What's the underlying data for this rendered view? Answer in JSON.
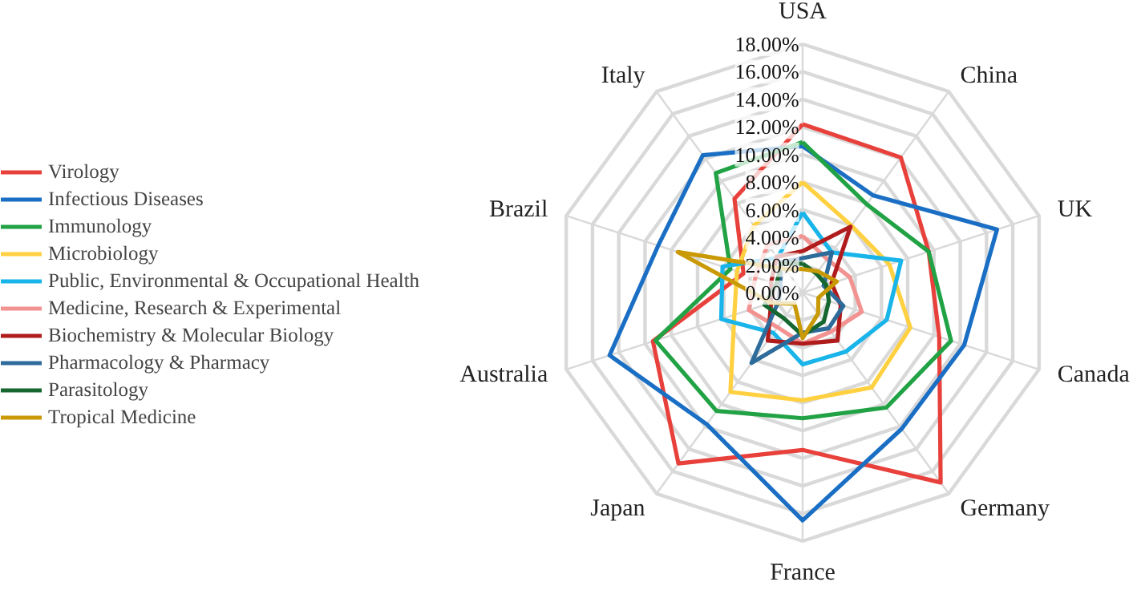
{
  "chart_data": {
    "type": "radar",
    "categories": [
      "USA",
      "China",
      "UK",
      "Canada",
      "Germany",
      "France",
      "Japan",
      "Australia",
      "Brazil",
      "Italy"
    ],
    "ylim": [
      0,
      18
    ],
    "yticks": [
      {
        "value": 0,
        "label": "0.00%"
      },
      {
        "value": 2,
        "label": "2.00%"
      },
      {
        "value": 4,
        "label": "4.00%"
      },
      {
        "value": 6,
        "label": "6.00%"
      },
      {
        "value": 8,
        "label": "8.00%"
      },
      {
        "value": 10,
        "label": "10.00%"
      },
      {
        "value": 12,
        "label": "12.00%"
      },
      {
        "value": 14,
        "label": "14.00%"
      },
      {
        "value": 16,
        "label": "16.00%"
      },
      {
        "value": 18,
        "label": "18.00%"
      }
    ],
    "grid": true,
    "legend": "left",
    "line_style": "solid",
    "marker": "none",
    "series": [
      {
        "name": "Virology",
        "color": "#e8413c",
        "values": [
          12.2,
          12.1,
          9.6,
          10.4,
          17.0,
          11.4,
          15.3,
          11.4,
          4.5,
          8.4
        ]
      },
      {
        "name": "Infectious Diseases",
        "color": "#1a6fc4",
        "values": [
          10.6,
          8.7,
          14.8,
          12.3,
          12.2,
          16.5,
          11.8,
          14.7,
          11.0,
          12.3
        ]
      },
      {
        "name": "Immunology",
        "color": "#21a245",
        "values": [
          10.9,
          7.9,
          9.6,
          11.3,
          10.3,
          9.1,
          10.6,
          11.2,
          5.5,
          10.7
        ]
      },
      {
        "name": "Microbiology",
        "color": "#ffd040",
        "values": [
          8.0,
          6.0,
          6.6,
          8.2,
          8.5,
          7.8,
          8.9,
          5.2,
          5.0,
          6.0
        ]
      },
      {
        "name": "Public, Environmental & Occupational Health",
        "color": "#19b4ea",
        "values": [
          5.8,
          3.6,
          7.5,
          6.4,
          5.3,
          5.2,
          3.6,
          6.2,
          6.1,
          3.1
        ]
      },
      {
        "name": "Medicine, Research & Experimental",
        "color": "#f29391",
        "values": [
          4.1,
          3.0,
          3.6,
          4.5,
          3.5,
          3.7,
          3.1,
          4.1,
          3.6,
          4.3
        ]
      },
      {
        "name": "Biochemistry & Molecular Biology",
        "color": "#b01c1c",
        "values": [
          3.0,
          5.9,
          2.2,
          2.9,
          4.3,
          3.7,
          4.3,
          2.4,
          2.4,
          3.2
        ]
      },
      {
        "name": "Pharmacology & Pharmacy",
        "color": "#2d6b9a",
        "values": [
          2.5,
          3.6,
          1.6,
          3.1,
          3.2,
          2.9,
          6.3,
          1.8,
          1.7,
          2.7
        ]
      },
      {
        "name": "Parasitology",
        "color": "#16672f",
        "values": [
          2.1,
          1.7,
          1.8,
          2.0,
          2.6,
          3.1,
          2.3,
          2.9,
          2.0,
          2.6
        ]
      },
      {
        "name": "Tropical Medicine",
        "color": "#c99a06",
        "values": [
          1.7,
          1.9,
          2.6,
          1.2,
          1.9,
          3.3,
          1.0,
          2.4,
          9.5,
          2.1
        ]
      }
    ]
  }
}
